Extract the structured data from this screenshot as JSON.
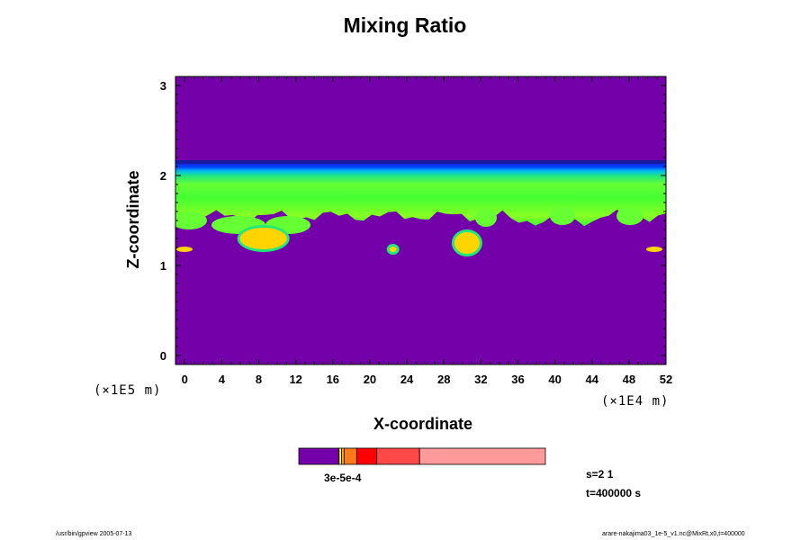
{
  "chart_data": {
    "type": "heatmap",
    "title": "Mixing Ratio",
    "xlabel": "X-coordinate",
    "ylabel": "Z-coordinate",
    "x_scale_note": "(×1E4 m)",
    "y_scale_note": "(×1E5 m)",
    "xlim": [
      -1,
      52
    ],
    "ylim": [
      -0.1,
      3.1
    ],
    "x_ticks": [
      "0",
      "4",
      "8",
      "12",
      "16",
      "20",
      "24",
      "28",
      "32",
      "36",
      "40",
      "44",
      "48",
      "52"
    ],
    "y_ticks": [
      "0",
      "1",
      "2",
      "3"
    ],
    "background_value_color": "#7300a8",
    "layer": {
      "z_bottom": 1.55,
      "z_top": 2.15,
      "color": "#33ff33"
    },
    "features": [
      {
        "x_center": 30.5,
        "z_center": 1.25,
        "color": "#ffd400"
      },
      {
        "x_center": 8.5,
        "z_center": 1.3,
        "color": "#ffd400"
      },
      {
        "x_center": 22.5,
        "z_center": 1.18,
        "color": "#ffd400"
      }
    ],
    "colorbar": {
      "label": "3e-5e-4",
      "segments": [
        {
          "weight": 16,
          "color": "#7300a8"
        },
        {
          "weight": 1,
          "color": "#ffff00"
        },
        {
          "weight": 1,
          "color": "#ffb000"
        },
        {
          "weight": 5,
          "color": "#ff7a1a"
        },
        {
          "weight": 8,
          "color": "#ff0000"
        },
        {
          "weight": 17,
          "color": "#ff4848"
        },
        {
          "weight": 50,
          "color": "#ff9a9a"
        }
      ]
    }
  },
  "info": {
    "s_line": "s=2 1",
    "t_line": "t=400000 s"
  },
  "footer": {
    "left": "/usr/bin/gpview 2005-07-13",
    "right": "arare-nakajima03_1e-5_v1.nc@MixRt,x0,t=400000"
  }
}
